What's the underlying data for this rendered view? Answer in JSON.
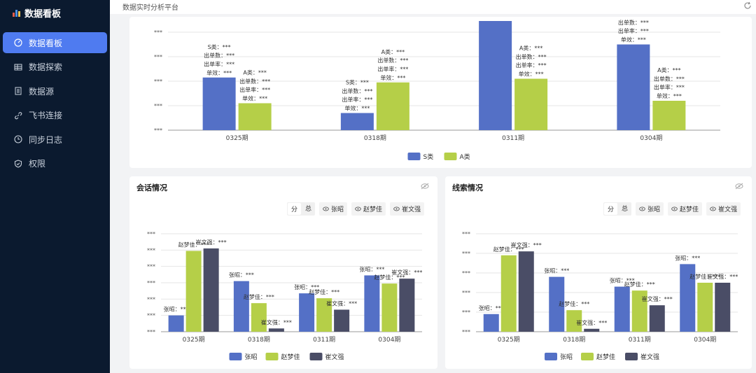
{
  "app": {
    "brand": "数据看板",
    "page_title": "数据实时分析平台"
  },
  "sidebar": {
    "items": [
      {
        "label": "数据看板",
        "icon": "dashboard-icon",
        "active": true
      },
      {
        "label": "数据探索",
        "icon": "table-icon"
      },
      {
        "label": "数据源",
        "icon": "document-icon"
      },
      {
        "label": "飞书连接",
        "icon": "link-icon"
      },
      {
        "label": "同步日志",
        "icon": "clock-icon"
      },
      {
        "label": "权限",
        "icon": "shield-icon"
      }
    ]
  },
  "colors": {
    "s": "#5470c6",
    "a": "#b5cf48",
    "zhang": "#5470c6",
    "zhao": "#b5cf48",
    "cui": "#4a4d66",
    "active_nav": "#4f7bf0",
    "sidebar_bg": "#0b1a2f"
  },
  "chart_data": [
    {
      "type": "bar",
      "categories": [
        "0325期",
        "0318期",
        "0311期",
        "0304期"
      ],
      "series": [
        {
          "name": "S类",
          "values": [
            2.15,
            0.7,
            4.5,
            3.5
          ]
        },
        {
          "name": "A类",
          "values": [
            1.1,
            1.95,
            2.1,
            1.2
          ]
        }
      ],
      "tick_labels": [
        "***",
        "***",
        "***",
        "***",
        "***"
      ],
      "data_label_lines": {
        "S类": [
          "S类：***",
          "出单数：***",
          "出单率：***",
          "单效：***"
        ],
        "A类": [
          "A类：***",
          "出单数：***",
          "出单率：***",
          "单效：***"
        ]
      },
      "legend": "bottom-center"
    },
    {
      "title": "会话情况",
      "type": "bar",
      "categories": [
        "0325期",
        "0318期",
        "0311期",
        "0304期"
      ],
      "series": [
        {
          "name": "张昭",
          "values": [
            1,
            3.1,
            2.35,
            3.45
          ]
        },
        {
          "name": "赵梦佳",
          "values": [
            4.95,
            1.75,
            2.05,
            2.95
          ]
        },
        {
          "name": "崔文强",
          "values": [
            5.1,
            0.2,
            1.35,
            3.25
          ]
        }
      ],
      "tick_labels": [
        "***",
        "***",
        "***",
        "***",
        "***",
        "***",
        "***"
      ],
      "data_labels": {
        "张昭": "张昭：***",
        "赵梦佳": "赵梦佳：***",
        "崔文强": "崔文强：***"
      },
      "legend": "bottom-center",
      "toolbar": {
        "split": "分",
        "total": "总",
        "toggles": [
          "张昭",
          "赵梦佳",
          "崔文强"
        ]
      }
    },
    {
      "title": "线索情况",
      "type": "bar",
      "categories": [
        "0325期",
        "0318期",
        "0311期",
        "0304期"
      ],
      "series": [
        {
          "name": "张昭",
          "values": [
            0.9,
            2.8,
            2.3,
            3.45
          ]
        },
        {
          "name": "赵梦佳",
          "values": [
            3.9,
            1.1,
            2.1,
            2.5
          ]
        },
        {
          "name": "崔文强",
          "values": [
            4.1,
            0.15,
            1.35,
            2.5
          ]
        }
      ],
      "tick_labels": [
        "***",
        "***",
        "***",
        "***",
        "***",
        "***"
      ],
      "data_labels": {
        "张昭": "张昭：***",
        "赵梦佳": "赵梦佳：***",
        "崔文强": "崔文强：***"
      },
      "legend": "bottom-center",
      "toolbar": {
        "split": "分",
        "total": "总",
        "toggles": [
          "张昭",
          "赵梦佳",
          "崔文强"
        ]
      }
    }
  ]
}
